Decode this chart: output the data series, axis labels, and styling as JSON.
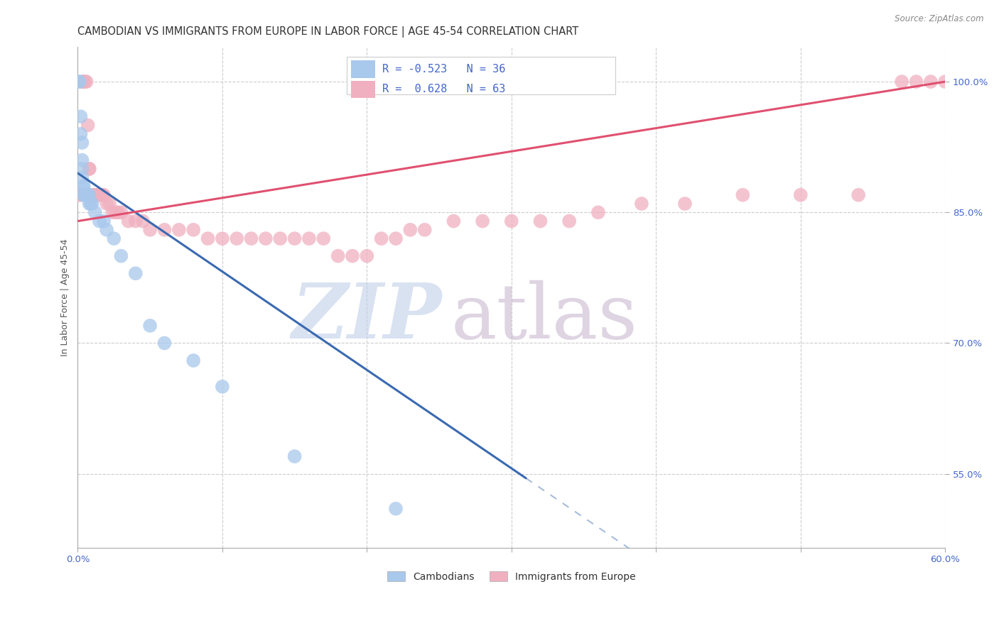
{
  "title": "CAMBODIAN VS IMMIGRANTS FROM EUROPE IN LABOR FORCE | AGE 45-54 CORRELATION CHART",
  "source": "Source: ZipAtlas.com",
  "ylabel": "In Labor Force | Age 45-54",
  "xlim": [
    0.0,
    0.6
  ],
  "ylim": [
    0.465,
    1.04
  ],
  "xticks": [
    0.0,
    0.1,
    0.2,
    0.3,
    0.4,
    0.5,
    0.6
  ],
  "yticks": [
    0.55,
    0.7,
    0.85,
    1.0
  ],
  "cambodian_R": -0.523,
  "cambodian_N": 36,
  "europe_R": 0.628,
  "europe_N": 63,
  "cambodian_color": "#a8c8ec",
  "europe_color": "#f0b0c0",
  "trend_blue": "#3a6ab0",
  "trend_pink": "#e05070",
  "watermark_zip": "ZIP",
  "watermark_atlas": "atlas",
  "watermark_color_zip": "#c0d0e8",
  "watermark_color_atlas": "#c8b8d0",
  "background_color": "#ffffff",
  "title_fontsize": 10.5,
  "axis_label_fontsize": 9,
  "tick_fontsize": 9.5,
  "right_tick_color": "#4466cc",
  "bottom_tick_color": "#4466cc",
  "cambodian_x": [
    0.001,
    0.001,
    0.002,
    0.002,
    0.003,
    0.003,
    0.003,
    0.003,
    0.004,
    0.004,
    0.004,
    0.005,
    0.005,
    0.005,
    0.005,
    0.006,
    0.006,
    0.007,
    0.007,
    0.008,
    0.008,
    0.009,
    0.01,
    0.012,
    0.015,
    0.018,
    0.02,
    0.025,
    0.03,
    0.04,
    0.05,
    0.06,
    0.08,
    0.1,
    0.15,
    0.22
  ],
  "cambodian_y": [
    1.0,
    1.0,
    0.96,
    0.94,
    0.93,
    0.91,
    0.9,
    0.89,
    0.88,
    0.88,
    0.87,
    0.87,
    0.87,
    0.87,
    0.87,
    0.87,
    0.87,
    0.87,
    0.87,
    0.87,
    0.86,
    0.86,
    0.86,
    0.85,
    0.84,
    0.84,
    0.83,
    0.82,
    0.8,
    0.78,
    0.72,
    0.7,
    0.68,
    0.65,
    0.57,
    0.51
  ],
  "europe_x": [
    0.001,
    0.002,
    0.003,
    0.004,
    0.005,
    0.006,
    0.007,
    0.008,
    0.008,
    0.009,
    0.01,
    0.011,
    0.012,
    0.013,
    0.014,
    0.015,
    0.016,
    0.017,
    0.018,
    0.02,
    0.022,
    0.024,
    0.026,
    0.028,
    0.03,
    0.035,
    0.04,
    0.045,
    0.05,
    0.06,
    0.07,
    0.08,
    0.09,
    0.1,
    0.11,
    0.12,
    0.13,
    0.14,
    0.15,
    0.16,
    0.17,
    0.18,
    0.19,
    0.2,
    0.21,
    0.22,
    0.23,
    0.24,
    0.26,
    0.28,
    0.3,
    0.32,
    0.34,
    0.36,
    0.39,
    0.42,
    0.46,
    0.5,
    0.54,
    0.57,
    0.58,
    0.59,
    0.6
  ],
  "europe_y": [
    0.87,
    0.87,
    1.0,
    1.0,
    1.0,
    1.0,
    0.95,
    0.9,
    0.9,
    0.87,
    0.87,
    0.87,
    0.87,
    0.87,
    0.87,
    0.87,
    0.87,
    0.87,
    0.87,
    0.86,
    0.86,
    0.85,
    0.85,
    0.85,
    0.85,
    0.84,
    0.84,
    0.84,
    0.83,
    0.83,
    0.83,
    0.83,
    0.82,
    0.82,
    0.82,
    0.82,
    0.82,
    0.82,
    0.82,
    0.82,
    0.82,
    0.8,
    0.8,
    0.8,
    0.82,
    0.82,
    0.83,
    0.83,
    0.84,
    0.84,
    0.84,
    0.84,
    0.84,
    0.85,
    0.86,
    0.86,
    0.87,
    0.87,
    0.87,
    1.0,
    1.0,
    1.0,
    1.0
  ],
  "blue_trend_x0": 0.0,
  "blue_trend_y0": 0.895,
  "blue_trend_x1": 0.31,
  "blue_trend_y1": 0.545,
  "blue_trend_solid_end": 0.31,
  "blue_trend_dash_end": 0.5,
  "pink_trend_x0": 0.0,
  "pink_trend_y0": 0.84,
  "pink_trend_x1": 0.6,
  "pink_trend_y1": 1.0
}
